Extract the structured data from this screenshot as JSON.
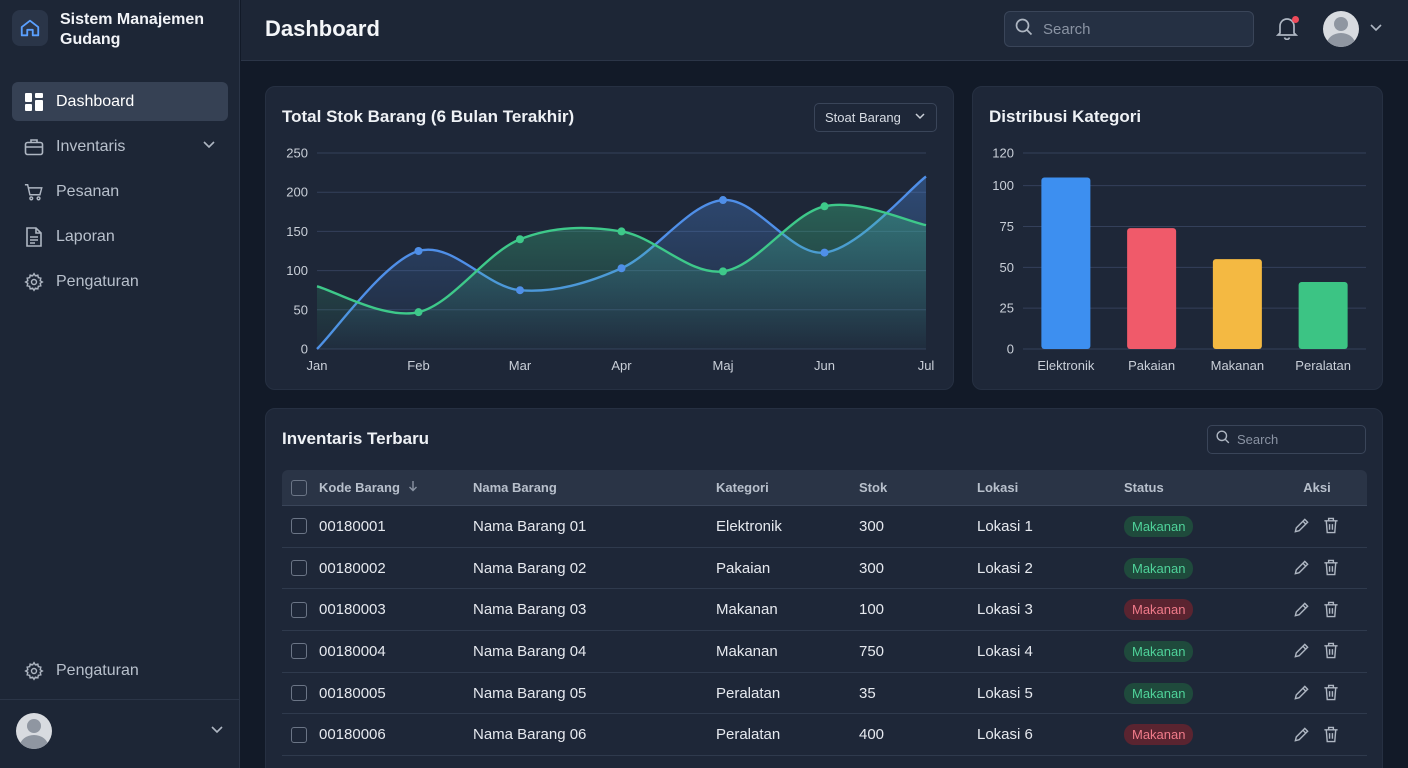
{
  "app": {
    "title": "Sistem Manajemen Gudang"
  },
  "sidebar": {
    "items": [
      {
        "label": "Dashboard",
        "icon": "dashboard-icon",
        "active": true
      },
      {
        "label": "Inventaris",
        "icon": "briefcase-icon",
        "expandable": true
      },
      {
        "label": "Pesanan",
        "icon": "cart-icon"
      },
      {
        "label": "Laporan",
        "icon": "document-icon"
      },
      {
        "label": "Pengaturan",
        "icon": "gear-icon"
      }
    ],
    "bottom_item": {
      "label": "Pengaturan",
      "icon": "gear-icon"
    }
  },
  "header": {
    "title": "Dashboard",
    "search_placeholder": "Search",
    "notification_dot_color": "#ef4a5a"
  },
  "stock_card": {
    "title": "Total Stok Barang (6 Bulan Terakhir)",
    "select_value": "Stoat Barang"
  },
  "category_card": {
    "title": "Distribusi Kategori"
  },
  "chart_data": [
    {
      "type": "area",
      "title": "Total Stok Barang (6 Bulan Terakhir)",
      "x": [
        "Jan",
        "Feb",
        "Mar",
        "Apr",
        "Maj",
        "Jun",
        "Jul"
      ],
      "ylim": [
        0,
        250
      ],
      "yticks": [
        0,
        50,
        100,
        150,
        200,
        250
      ],
      "grid": true,
      "series": [
        {
          "color": "#4f8fe8",
          "fill": true,
          "values": [
            0,
            125,
            75,
            103,
            190,
            123,
            220
          ]
        },
        {
          "color": "#3ec98a",
          "fill": true,
          "values": [
            80,
            47,
            140,
            150,
            99,
            182,
            158
          ]
        }
      ]
    },
    {
      "type": "bar",
      "title": "Distribusi Kategori",
      "categories": [
        "Elektronik",
        "Pakaian",
        "Makanan",
        "Peralatan"
      ],
      "values": [
        105,
        74,
        55,
        41
      ],
      "colors": [
        "#3d8ff0",
        "#f05a6a",
        "#f4b942",
        "#3cc484"
      ],
      "ylim": [
        0,
        120
      ],
      "yticks": [
        0,
        25,
        50,
        75,
        100,
        120
      ],
      "grid": true
    }
  ],
  "inventory": {
    "title": "Inventaris Terbaru",
    "search_placeholder": "Search",
    "columns": [
      "Kode Barang",
      "Nama Barang",
      "Kategori",
      "Stok",
      "Lokasi",
      "Status",
      "Aksi"
    ],
    "rows": [
      {
        "kode": "00180001",
        "nama": "Nama Barang 01",
        "kategori": "Elektronik",
        "stok": "300",
        "lokasi": "Lokasi 1",
        "status": "Makanan",
        "status_color": "green"
      },
      {
        "kode": "00180002",
        "nama": "Nama Barang 02",
        "kategori": "Pakaian",
        "stok": "300",
        "lokasi": "Lokasi 2",
        "status": "Makanan",
        "status_color": "green"
      },
      {
        "kode": "00180003",
        "nama": "Nama Barang 03",
        "kategori": "Makanan",
        "stok": "100",
        "lokasi": "Lokasi 3",
        "status": "Makanan",
        "status_color": "red"
      },
      {
        "kode": "00180004",
        "nama": "Nama Barang 04",
        "kategori": "Makanan",
        "stok": "750",
        "lokasi": "Lokasi 4",
        "status": "Makanan",
        "status_color": "green"
      },
      {
        "kode": "00180005",
        "nama": "Nama Barang 05",
        "kategori": "Peralatan",
        "stok": "35",
        "lokasi": "Lokasi 5",
        "status": "Makanan",
        "status_color": "green"
      },
      {
        "kode": "00180006",
        "nama": "Nama Barang 06",
        "kategori": "Peralatan",
        "stok": "400",
        "lokasi": "Lokasi 6",
        "status": "Makanan",
        "status_color": "red"
      }
    ]
  }
}
